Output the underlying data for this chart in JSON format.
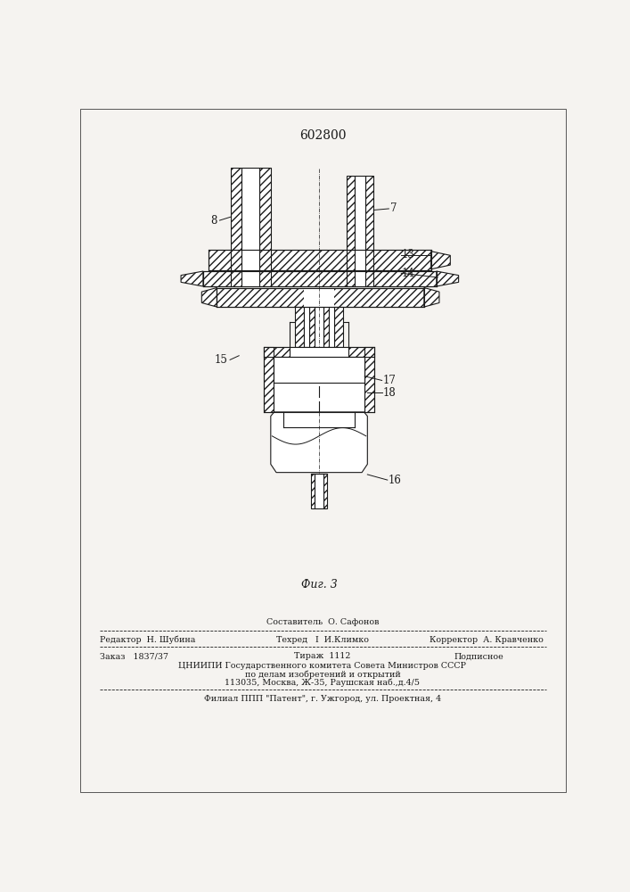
{
  "title": "602800",
  "fig_label": "Фиг. 3",
  "bg": "#f5f3f0",
  "lc": "#1a1a1a",
  "footer": {
    "sestavitel": "Составитель  О. Сафонов",
    "redaktor": "Редактор  Н. Шубина",
    "tehred": "Техред   I  И.Климко",
    "korrektor": "Корректор  А. Кравченко",
    "zakaz": "Заказ   1837/37",
    "tirazh": "Тираж  1112",
    "podpisnoe": "Подписное",
    "line1": "ЦНИИПИ Государственного комитета Совета Министров СССР",
    "line2": "по делам изобретений и открытий",
    "line3": "113035, Москва, Ж-35, Раушская наб.,д.4/5",
    "filial": "Филиал ППП \"Патент\", г. Ужгород, ул. Проектная, 4"
  }
}
